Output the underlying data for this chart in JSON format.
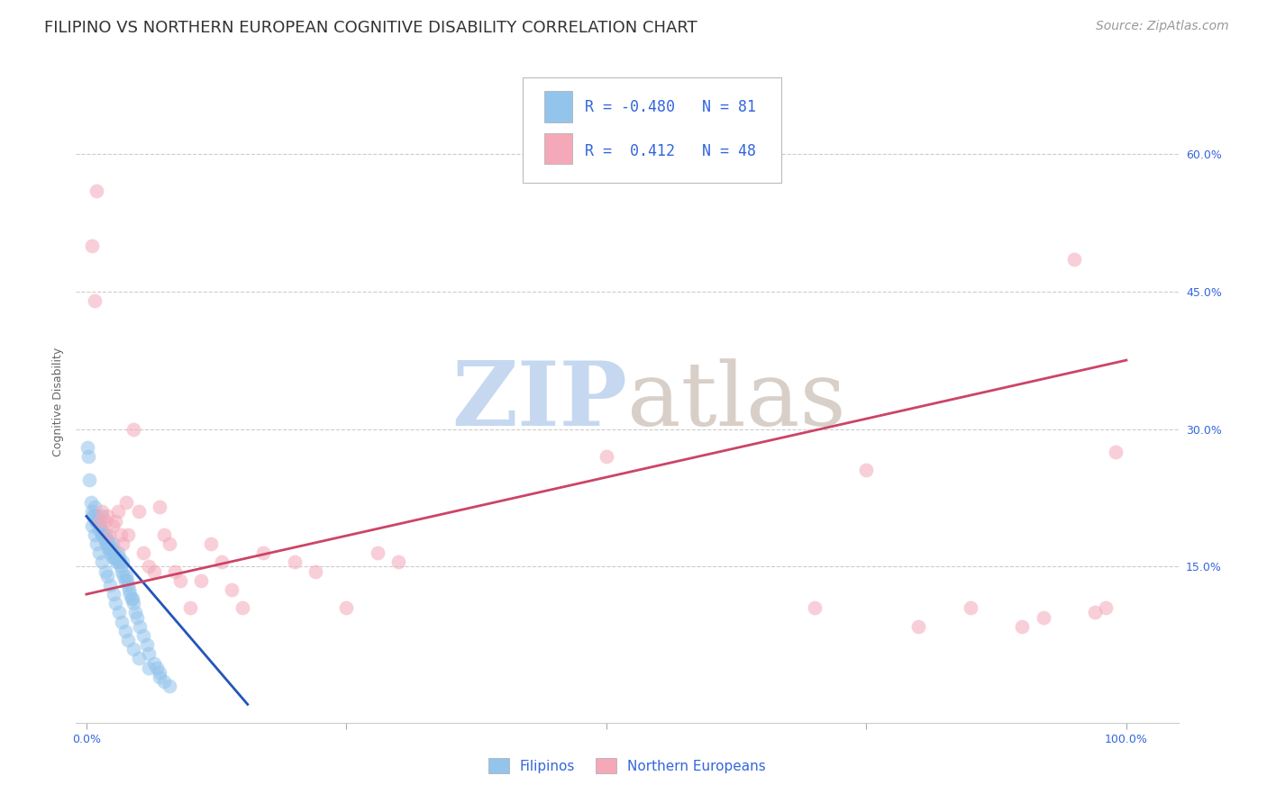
{
  "title": "FILIPINO VS NORTHERN EUROPEAN COGNITIVE DISABILITY CORRELATION CHART",
  "source": "Source: ZipAtlas.com",
  "ylabel": "Cognitive Disability",
  "y_tick_labels": [
    "15.0%",
    "30.0%",
    "45.0%",
    "60.0%"
  ],
  "y_tick_values": [
    0.15,
    0.3,
    0.45,
    0.6
  ],
  "x_tick_labels": [
    "0.0%",
    "",
    "",
    "",
    "100.0%"
  ],
  "x_tick_values": [
    0.0,
    0.25,
    0.5,
    0.75,
    1.0
  ],
  "xlim": [
    -0.01,
    1.05
  ],
  "ylim": [
    -0.02,
    0.68
  ],
  "blue_R": -0.48,
  "blue_N": 81,
  "pink_R": 0.412,
  "pink_N": 48,
  "blue_color": "#93c4ec",
  "pink_color": "#f4a8b8",
  "blue_line_color": "#2255bb",
  "pink_line_color": "#cc4466",
  "legend_text_color": "#3366dd",
  "blue_scatter_x": [
    0.001,
    0.002,
    0.003,
    0.004,
    0.005,
    0.006,
    0.007,
    0.008,
    0.009,
    0.01,
    0.01,
    0.012,
    0.012,
    0.013,
    0.014,
    0.015,
    0.015,
    0.016,
    0.017,
    0.018,
    0.018,
    0.019,
    0.02,
    0.02,
    0.021,
    0.022,
    0.022,
    0.023,
    0.024,
    0.025,
    0.025,
    0.026,
    0.027,
    0.028,
    0.029,
    0.03,
    0.03,
    0.031,
    0.032,
    0.033,
    0.034,
    0.035,
    0.036,
    0.037,
    0.038,
    0.039,
    0.04,
    0.041,
    0.042,
    0.043,
    0.044,
    0.045,
    0.047,
    0.049,
    0.051,
    0.055,
    0.058,
    0.06,
    0.065,
    0.068,
    0.07,
    0.075,
    0.08,
    0.005,
    0.008,
    0.01,
    0.012,
    0.015,
    0.018,
    0.02,
    0.023,
    0.026,
    0.028,
    0.031,
    0.034,
    0.037,
    0.04,
    0.045,
    0.05,
    0.06,
    0.07
  ],
  "blue_scatter_y": [
    0.28,
    0.27,
    0.245,
    0.22,
    0.21,
    0.205,
    0.205,
    0.215,
    0.2,
    0.205,
    0.2,
    0.195,
    0.19,
    0.195,
    0.19,
    0.185,
    0.205,
    0.185,
    0.18,
    0.185,
    0.18,
    0.175,
    0.18,
    0.175,
    0.17,
    0.175,
    0.17,
    0.165,
    0.17,
    0.175,
    0.16,
    0.165,
    0.16,
    0.16,
    0.155,
    0.165,
    0.155,
    0.16,
    0.155,
    0.15,
    0.145,
    0.155,
    0.14,
    0.135,
    0.14,
    0.135,
    0.13,
    0.125,
    0.12,
    0.115,
    0.115,
    0.11,
    0.1,
    0.095,
    0.085,
    0.075,
    0.065,
    0.055,
    0.045,
    0.04,
    0.035,
    0.025,
    0.02,
    0.195,
    0.185,
    0.175,
    0.165,
    0.155,
    0.145,
    0.14,
    0.13,
    0.12,
    0.11,
    0.1,
    0.09,
    0.08,
    0.07,
    0.06,
    0.05,
    0.04,
    0.03
  ],
  "pink_scatter_x": [
    0.005,
    0.008,
    0.01,
    0.013,
    0.015,
    0.018,
    0.02,
    0.022,
    0.025,
    0.028,
    0.03,
    0.033,
    0.035,
    0.038,
    0.04,
    0.045,
    0.05,
    0.055,
    0.06,
    0.065,
    0.07,
    0.075,
    0.08,
    0.085,
    0.09,
    0.1,
    0.11,
    0.12,
    0.13,
    0.14,
    0.15,
    0.17,
    0.2,
    0.22,
    0.25,
    0.28,
    0.3,
    0.5,
    0.7,
    0.75,
    0.8,
    0.85,
    0.9,
    0.92,
    0.95,
    0.97,
    0.98,
    0.99
  ],
  "pink_scatter_y": [
    0.5,
    0.44,
    0.56,
    0.2,
    0.21,
    0.2,
    0.205,
    0.185,
    0.195,
    0.2,
    0.21,
    0.185,
    0.175,
    0.22,
    0.185,
    0.3,
    0.21,
    0.165,
    0.15,
    0.145,
    0.215,
    0.185,
    0.175,
    0.145,
    0.135,
    0.105,
    0.135,
    0.175,
    0.155,
    0.125,
    0.105,
    0.165,
    0.155,
    0.145,
    0.105,
    0.165,
    0.155,
    0.27,
    0.105,
    0.255,
    0.085,
    0.105,
    0.085,
    0.095,
    0.485,
    0.1,
    0.105,
    0.275
  ],
  "blue_line_x": [
    0.0,
    0.155
  ],
  "blue_line_y": [
    0.205,
    0.0
  ],
  "pink_line_x": [
    0.0,
    1.0
  ],
  "pink_line_y": [
    0.12,
    0.375
  ],
  "grid_color": "#cccccc",
  "background_color": "#ffffff",
  "title_fontsize": 13,
  "source_fontsize": 10,
  "axis_label_fontsize": 9,
  "legend_fontsize": 12,
  "watermark_color_zip": "#c5d8f0",
  "watermark_color_atlas": "#d8cfc8"
}
